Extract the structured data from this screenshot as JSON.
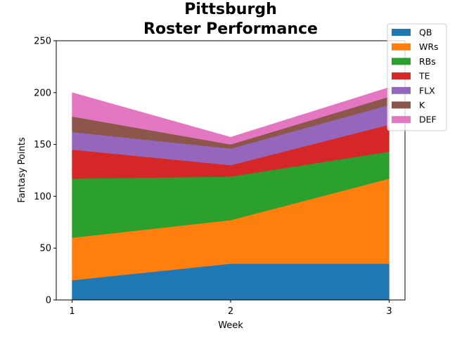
{
  "chart_data": {
    "type": "area",
    "stacked": true,
    "title": "Pittsburgh\nRoster Performance",
    "xlabel": "Week",
    "ylabel": "Fantasy Points",
    "x": [
      1,
      2,
      3
    ],
    "x_tick_labels": [
      "1",
      "2",
      "3"
    ],
    "xlim": [
      0.9,
      3.1
    ],
    "ylim": [
      0,
      250
    ],
    "y_ticks": [
      0,
      50,
      100,
      150,
      200,
      250
    ],
    "grid": false,
    "legend_position": "top-right",
    "series": [
      {
        "name": "QB",
        "color": "#1f77b4",
        "values": [
          19,
          35,
          35
        ]
      },
      {
        "name": "WRs",
        "color": "#ff7f0e",
        "values": [
          41,
          42,
          82
        ]
      },
      {
        "name": "RBs",
        "color": "#2ca02c",
        "values": [
          57,
          42,
          26
        ]
      },
      {
        "name": "TE",
        "color": "#d62728",
        "values": [
          28,
          11,
          26
        ]
      },
      {
        "name": "FLX",
        "color": "#9467bd",
        "values": [
          17,
          16,
          19
        ]
      },
      {
        "name": "K",
        "color": "#8c564b",
        "values": [
          15,
          4,
          8
        ]
      },
      {
        "name": "DEF",
        "color": "#e377c2",
        "values": [
          23,
          7,
          9
        ]
      }
    ]
  }
}
